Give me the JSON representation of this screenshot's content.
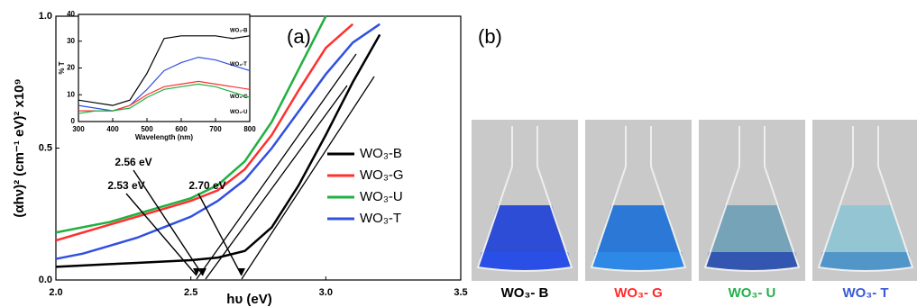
{
  "panel_labels": [
    "(a)",
    "(b)"
  ],
  "chart_data": [
    {
      "type": "line",
      "xlabel": "hυ (eV)",
      "ylabel": "(αhν)² (cm⁻¹ eV)² x10⁹",
      "x": [
        2.0,
        2.1,
        2.2,
        2.3,
        2.4,
        2.5,
        2.6,
        2.7,
        2.8,
        2.9,
        3.0,
        3.1,
        3.2
      ],
      "series": [
        {
          "name": "WO₃-B",
          "color": "#000000",
          "values": [
            0.05,
            0.055,
            0.06,
            0.065,
            0.07,
            0.075,
            0.085,
            0.11,
            0.2,
            0.36,
            0.55,
            0.75,
            0.93
          ]
        },
        {
          "name": "WO₃-G",
          "color": "#ff3030",
          "values": [
            0.15,
            0.18,
            0.21,
            0.24,
            0.27,
            0.3,
            0.34,
            0.42,
            0.55,
            0.72,
            0.88,
            0.97,
            null
          ]
        },
        {
          "name": "WO₃-U",
          "color": "#20b040",
          "values": [
            0.18,
            0.2,
            0.22,
            0.25,
            0.28,
            0.31,
            0.36,
            0.45,
            0.6,
            0.8,
            1.0,
            null,
            null
          ]
        },
        {
          "name": "WO₃-T",
          "color": "#3050e0",
          "values": [
            0.08,
            0.1,
            0.13,
            0.16,
            0.2,
            0.24,
            0.3,
            0.38,
            0.5,
            0.64,
            0.78,
            0.9,
            0.97
          ]
        }
      ],
      "xlim": [
        2.0,
        3.5
      ],
      "ylim": [
        0,
        1.0
      ],
      "xticks": [
        {
          "value": 2.0,
          "label": "2.0"
        },
        {
          "value": 2.5,
          "label": "2.5"
        },
        {
          "value": 3.0,
          "label": "3.0"
        },
        {
          "value": 3.5,
          "label": "3.5"
        }
      ],
      "yticks": [
        {
          "value": 0,
          "label": "0.0"
        },
        {
          "value": 0.5,
          "label": "0.5"
        },
        {
          "value": 1.0,
          "label": "1.0"
        }
      ],
      "annotations": [
        "2.56 eV",
        "2.53 eV",
        "2.70 eV"
      ]
    },
    {
      "type": "line",
      "xlabel": "Wavelength (nm)",
      "ylabel": "% T",
      "x": [
        300,
        350,
        400,
        450,
        500,
        550,
        600,
        650,
        700,
        750,
        800
      ],
      "series": [
        {
          "name": "WO₃-B",
          "color": "#000000",
          "values": [
            8,
            7,
            6,
            8,
            18,
            31,
            32,
            32,
            32,
            31,
            32
          ]
        },
        {
          "name": "WO₃-T",
          "color": "#3050e0",
          "values": [
            6,
            5,
            4,
            6,
            12,
            19,
            22,
            24,
            23,
            21,
            19
          ]
        },
        {
          "name": "WO₃-G",
          "color": "#ff3030",
          "values": [
            4,
            4,
            4,
            6,
            10,
            13,
            14,
            15,
            14,
            13,
            12
          ]
        },
        {
          "name": "WO₃-U",
          "color": "#20b040",
          "values": [
            3,
            4,
            4,
            5,
            9,
            12,
            13,
            14,
            13,
            11,
            9
          ]
        }
      ],
      "xlim": [
        300,
        800
      ],
      "ylim": [
        0,
        40
      ],
      "xticks": [
        300,
        400,
        500,
        600,
        700,
        800
      ],
      "yticks": [
        0,
        10,
        20,
        30,
        40
      ]
    }
  ],
  "photos": {
    "captions": [
      "WO₃- B",
      "WO₃- G",
      "WO₃- U",
      "WO₃- T"
    ]
  }
}
